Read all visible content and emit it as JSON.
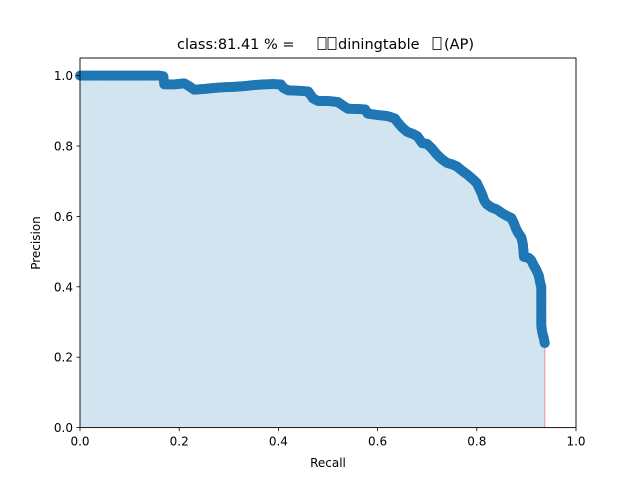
{
  "chart_data": {
    "type": "scatter",
    "title_prefix": "class:81.41 % = ",
    "title_middle": "diningtable",
    "title_suffix": "(AP)",
    "xlabel": "Recall",
    "ylabel": "Precision",
    "xlim": [
      0.0,
      1.0
    ],
    "ylim": [
      0.0,
      1.05
    ],
    "xticks": [
      "0.0",
      "0.2",
      "0.4",
      "0.6",
      "0.8",
      "1.0"
    ],
    "yticks": [
      "0.0",
      "0.2",
      "0.4",
      "0.6",
      "0.8",
      "1.0"
    ],
    "grid": false,
    "marker_color": "#1f77b4",
    "fill_color": "#1f77b4",
    "fill_alpha": 0.2,
    "edge_color": "#e8a0a0",
    "points": [
      [
        0.0,
        1.0
      ],
      [
        0.02,
        1.0
      ],
      [
        0.04,
        1.0
      ],
      [
        0.06,
        1.0
      ],
      [
        0.08,
        1.0
      ],
      [
        0.1,
        1.0
      ],
      [
        0.12,
        1.0
      ],
      [
        0.14,
        1.0
      ],
      [
        0.16,
        1.0
      ],
      [
        0.168,
        0.998
      ],
      [
        0.17,
        0.975
      ],
      [
        0.19,
        0.975
      ],
      [
        0.21,
        0.978
      ],
      [
        0.22,
        0.97
      ],
      [
        0.23,
        0.96
      ],
      [
        0.25,
        0.962
      ],
      [
        0.27,
        0.965
      ],
      [
        0.29,
        0.967
      ],
      [
        0.31,
        0.968
      ],
      [
        0.33,
        0.97
      ],
      [
        0.35,
        0.973
      ],
      [
        0.37,
        0.975
      ],
      [
        0.39,
        0.976
      ],
      [
        0.405,
        0.975
      ],
      [
        0.41,
        0.965
      ],
      [
        0.42,
        0.958
      ],
      [
        0.44,
        0.957
      ],
      [
        0.46,
        0.955
      ],
      [
        0.465,
        0.945
      ],
      [
        0.47,
        0.935
      ],
      [
        0.48,
        0.928
      ],
      [
        0.5,
        0.928
      ],
      [
        0.52,
        0.925
      ],
      [
        0.53,
        0.915
      ],
      [
        0.54,
        0.906
      ],
      [
        0.56,
        0.905
      ],
      [
        0.575,
        0.904
      ],
      [
        0.58,
        0.892
      ],
      [
        0.6,
        0.888
      ],
      [
        0.62,
        0.885
      ],
      [
        0.635,
        0.878
      ],
      [
        0.64,
        0.868
      ],
      [
        0.65,
        0.852
      ],
      [
        0.66,
        0.84
      ],
      [
        0.67,
        0.835
      ],
      [
        0.68,
        0.828
      ],
      [
        0.69,
        0.808
      ],
      [
        0.7,
        0.806
      ],
      [
        0.71,
        0.792
      ],
      [
        0.72,
        0.775
      ],
      [
        0.73,
        0.762
      ],
      [
        0.74,
        0.752
      ],
      [
        0.75,
        0.748
      ],
      [
        0.76,
        0.742
      ],
      [
        0.77,
        0.73
      ],
      [
        0.78,
        0.72
      ],
      [
        0.79,
        0.708
      ],
      [
        0.8,
        0.695
      ],
      [
        0.805,
        0.68
      ],
      [
        0.81,
        0.665
      ],
      [
        0.815,
        0.645
      ],
      [
        0.82,
        0.635
      ],
      [
        0.83,
        0.625
      ],
      [
        0.84,
        0.62
      ],
      [
        0.85,
        0.61
      ],
      [
        0.86,
        0.602
      ],
      [
        0.87,
        0.595
      ],
      [
        0.875,
        0.58
      ],
      [
        0.88,
        0.562
      ],
      [
        0.885,
        0.55
      ],
      [
        0.89,
        0.54
      ],
      [
        0.893,
        0.52
      ],
      [
        0.895,
        0.485
      ],
      [
        0.905,
        0.482
      ],
      [
        0.91,
        0.475
      ],
      [
        0.915,
        0.46
      ],
      [
        0.92,
        0.448
      ],
      [
        0.925,
        0.432
      ],
      [
        0.928,
        0.41
      ],
      [
        0.93,
        0.4
      ],
      [
        0.93,
        0.36
      ],
      [
        0.93,
        0.32
      ],
      [
        0.93,
        0.29
      ],
      [
        0.932,
        0.27
      ],
      [
        0.935,
        0.255
      ],
      [
        0.937,
        0.24
      ]
    ]
  }
}
